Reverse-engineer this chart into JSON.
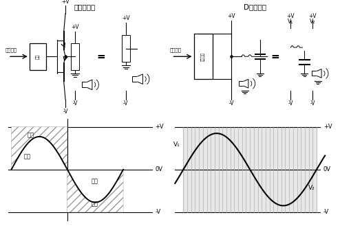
{
  "title_left": "模拟放大器",
  "title_right": "D类放大器",
  "label_analog_input": "模拟信号",
  "label_digital_input": "数字信号",
  "label_amp_box": "压缩",
  "label_driver_box": "驱动电路",
  "label_loss_top": "损失",
  "label_loss_bottom": "损失",
  "label_output_top": "输出",
  "label_output_bottom": "输出",
  "label_pV": "+V",
  "label_0V": "0V",
  "label_nV": "-V",
  "label_V1": "V₁",
  "label_V2": "V₂",
  "text_color": "#000000",
  "hatch_color": "#aaaaaa",
  "pwm_gray": "#d0d0d0",
  "pwm_line": "#b0b0b0"
}
